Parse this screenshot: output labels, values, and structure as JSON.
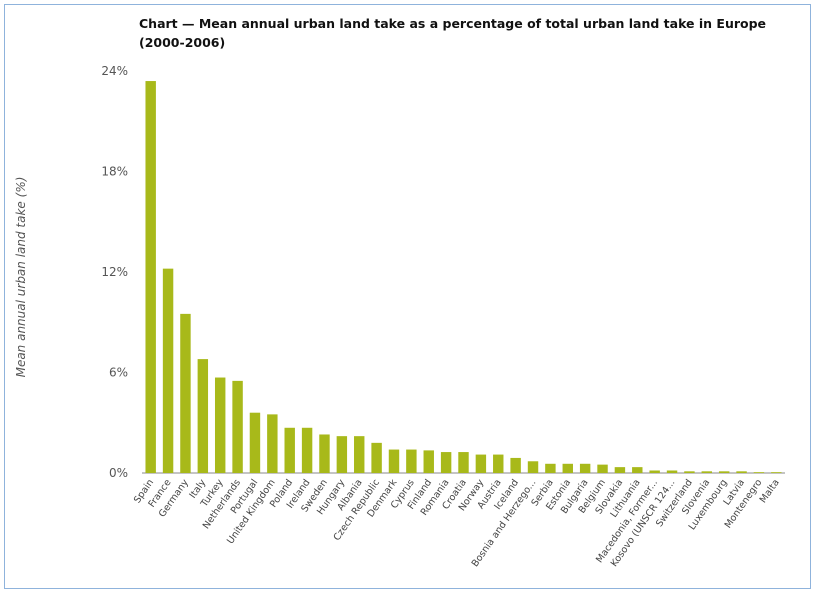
{
  "chart_data": {
    "type": "bar",
    "title": "Chart — Mean annual urban land take as a percentage of total urban land take in Europe (2000-2006)",
    "xlabel": "",
    "ylabel": "Mean annual urban land take (%)",
    "ylim": [
      0,
      24
    ],
    "yticks": [
      "0%",
      "6%",
      "12%",
      "18%",
      "24%"
    ],
    "ytick_values": [
      0,
      6,
      12,
      18,
      24
    ],
    "grid": false,
    "legend": "none",
    "bar_color": "#a8b91a",
    "categories": [
      "Spain",
      "France",
      "Germany",
      "Italy",
      "Turkey",
      "Netherlands",
      "Portugal",
      "United Kingdom",
      "Poland",
      "Ireland",
      "Sweden",
      "Hungary",
      "Albania",
      "Czech Republic",
      "Denmark",
      "Cyprus",
      "Finland",
      "Romania",
      "Croatia",
      "Norway",
      "Austria",
      "Iceland",
      "Bosnia and Herzego...",
      "Serbia",
      "Estonia",
      "Bulgaria",
      "Belgium",
      "Slovakia",
      "Lithuania",
      "Macedonia, Former...",
      "Kosovo (UNSCR 124...",
      "Switzerland",
      "Slovenia",
      "Luxembourg",
      "Latvia",
      "Montenegro",
      "Malta"
    ],
    "values": [
      23.4,
      12.2,
      9.5,
      6.8,
      5.7,
      5.5,
      3.6,
      3.5,
      2.7,
      2.7,
      2.3,
      2.2,
      2.2,
      1.8,
      1.4,
      1.4,
      1.35,
      1.25,
      1.25,
      1.1,
      1.1,
      0.9,
      0.7,
      0.55,
      0.55,
      0.55,
      0.5,
      0.35,
      0.35,
      0.15,
      0.15,
      0.1,
      0.1,
      0.1,
      0.1,
      0.05,
      0.05
    ]
  }
}
